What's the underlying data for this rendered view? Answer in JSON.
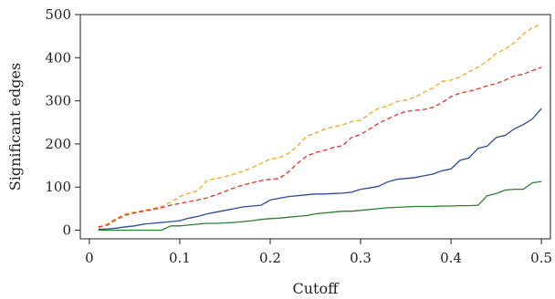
{
  "chart_data": {
    "type": "line",
    "title": "",
    "xlabel": "Cutoff",
    "ylabel": "Significant edges",
    "xlim": [
      -0.01,
      0.51
    ],
    "ylim": [
      -20,
      500
    ],
    "grid": false,
    "legend": "none",
    "x_ticks": [
      0,
      0.1,
      0.2,
      0.3,
      0.4,
      0.5
    ],
    "x_tick_labels": [
      "0",
      "0.1",
      "0.2",
      "0.3",
      "0.4",
      "0.5"
    ],
    "y_ticks": [
      0,
      100,
      200,
      300,
      400,
      500
    ],
    "y_tick_labels": [
      "0",
      "100",
      "200",
      "300",
      "400",
      "500"
    ],
    "x": [
      0.01,
      0.02,
      0.03,
      0.04,
      0.05,
      0.06,
      0.07,
      0.08,
      0.09,
      0.1,
      0.11,
      0.12,
      0.13,
      0.14,
      0.15,
      0.16,
      0.17,
      0.18,
      0.19,
      0.2,
      0.21,
      0.22,
      0.23,
      0.24,
      0.25,
      0.26,
      0.27,
      0.28,
      0.29,
      0.3,
      0.31,
      0.32,
      0.33,
      0.34,
      0.35,
      0.36,
      0.37,
      0.38,
      0.39,
      0.4,
      0.41,
      0.42,
      0.43,
      0.44,
      0.45,
      0.46,
      0.47,
      0.48,
      0.49,
      0.5
    ],
    "series": [
      {
        "color": "#f5a623",
        "dash": "dashed",
        "values": [
          5,
          15,
          28,
          38,
          42,
          46,
          50,
          55,
          65,
          78,
          86,
          92,
          115,
          120,
          124,
          130,
          137,
          145,
          155,
          165,
          168,
          178,
          195,
          218,
          225,
          234,
          240,
          244,
          252,
          255,
          270,
          283,
          288,
          298,
          302,
          308,
          320,
          330,
          345,
          348,
          355,
          368,
          378,
          392,
          410,
          420,
          435,
          455,
          470,
          478
        ]
      },
      {
        "color": "#e8312a",
        "dash": "dashed",
        "values": [
          8,
          12,
          25,
          35,
          40,
          44,
          48,
          52,
          58,
          62,
          66,
          70,
          75,
          82,
          90,
          98,
          105,
          110,
          115,
          118,
          120,
          135,
          155,
          172,
          180,
          185,
          192,
          196,
          215,
          222,
          235,
          248,
          258,
          268,
          275,
          278,
          280,
          285,
          296,
          310,
          318,
          322,
          328,
          335,
          340,
          348,
          358,
          362,
          370,
          378
        ]
      },
      {
        "color": "#2b4aa0",
        "dash": "solid",
        "values": [
          2,
          3,
          5,
          8,
          10,
          14,
          16,
          18,
          20,
          22,
          28,
          32,
          38,
          42,
          46,
          50,
          54,
          56,
          58,
          70,
          74,
          78,
          80,
          82,
          84,
          84,
          85,
          86,
          88,
          95,
          98,
          102,
          112,
          118,
          120,
          122,
          126,
          130,
          138,
          142,
          162,
          168,
          190,
          195,
          215,
          220,
          235,
          245,
          258,
          282
        ]
      },
      {
        "color": "#2d7d32",
        "dash": "solid",
        "values": [
          0,
          0,
          0,
          0,
          0,
          0,
          0,
          0,
          10,
          10,
          12,
          14,
          16,
          16,
          17,
          18,
          20,
          22,
          25,
          27,
          28,
          30,
          32,
          34,
          38,
          40,
          42,
          44,
          44,
          46,
          48,
          50,
          52,
          53,
          54,
          55,
          55,
          55,
          56,
          56,
          57,
          57,
          58,
          80,
          85,
          93,
          95,
          95,
          110,
          113
        ]
      }
    ]
  }
}
